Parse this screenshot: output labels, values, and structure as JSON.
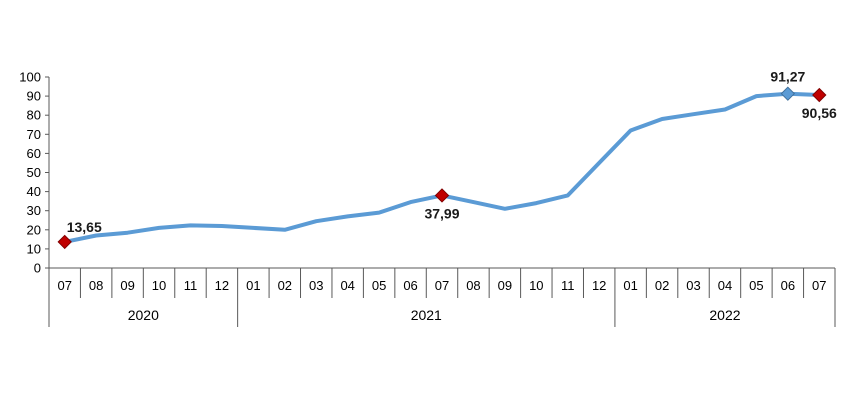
{
  "chart_data": {
    "type": "line",
    "title": "",
    "xlabel": "",
    "ylabel": "",
    "ylim": [
      0,
      100
    ],
    "yticks": [
      "0",
      "10",
      "20",
      "30",
      "40",
      "50",
      "60",
      "70",
      "80",
      "90",
      "100"
    ],
    "grid": false,
    "legend": "none",
    "categories": [
      "07",
      "08",
      "09",
      "10",
      "11",
      "12",
      "01",
      "02",
      "03",
      "04",
      "05",
      "06",
      "07",
      "08",
      "09",
      "10",
      "11",
      "12",
      "01",
      "02",
      "03",
      "04",
      "05",
      "06",
      "07"
    ],
    "years": [
      {
        "label": "2020",
        "months": 6
      },
      {
        "label": "2021",
        "months": 12
      },
      {
        "label": "2022",
        "months": 7
      }
    ],
    "series": [
      {
        "color": "#5b9bd5",
        "values": [
          13.65,
          17.0,
          18.5,
          21.0,
          22.3,
          22.0,
          21.0,
          20.0,
          24.5,
          27.0,
          29.0,
          34.5,
          37.99,
          34.5,
          31.0,
          34.0,
          38.0,
          55.0,
          72.0,
          78.0,
          80.5,
          83.0,
          90.0,
          91.27,
          90.56
        ]
      }
    ],
    "annotations": [
      {
        "index": 0,
        "label": "13,65",
        "marker_color": "#c00000",
        "placement": "above-right"
      },
      {
        "index": 12,
        "label": "37,99",
        "marker_color": "#c00000",
        "placement": "below"
      },
      {
        "index": 23,
        "label": "91,27",
        "marker_color": "#5b9bd5",
        "placement": "above"
      },
      {
        "index": 24,
        "label": "90,56",
        "marker_color": "#c00000",
        "placement": "below"
      }
    ]
  }
}
